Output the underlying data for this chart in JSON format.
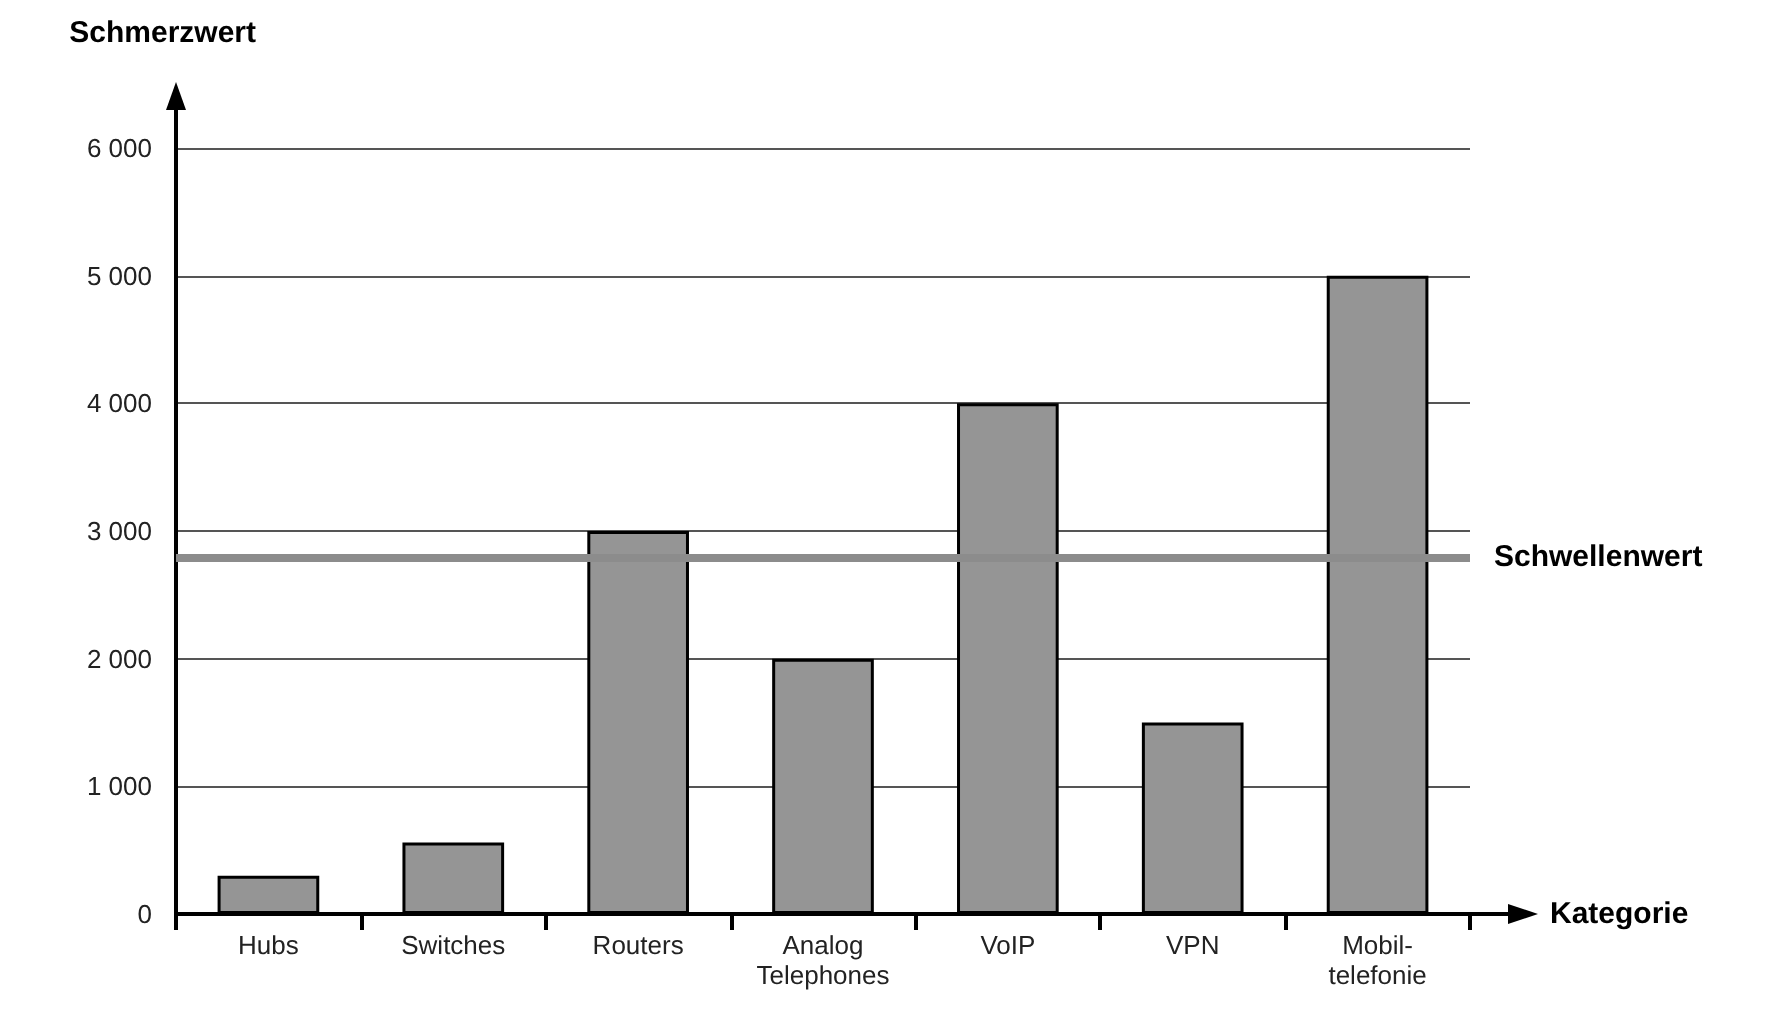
{
  "chart_data": {
    "type": "bar",
    "xlabel": "Kategorie",
    "ylabel": "Schmerzwert",
    "categories": [
      "Hubs",
      "Switches",
      "Routers",
      "Analog\nTelephones",
      "VoIP",
      "VPN",
      "Mobil-\ntelefonie"
    ],
    "values": [
      300,
      560,
      3000,
      2000,
      4000,
      1500,
      5000
    ],
    "color": "#959595",
    "ylim": [
      0,
      6000
    ],
    "yticks": [
      {
        "value": 0,
        "label": "0"
      },
      {
        "value": 1000,
        "label": "1 000"
      },
      {
        "value": 2000,
        "label": "2 000"
      },
      {
        "value": 3000,
        "label": "3 000"
      },
      {
        "value": 4000,
        "label": "4 000"
      },
      {
        "value": 5000,
        "label": "5 000"
      },
      {
        "value": 6000,
        "label": "6 000"
      }
    ],
    "grid": "y",
    "ref_lines": [
      {
        "axis": "y",
        "value": 2800,
        "label": "Schwellenwert",
        "color": "#8c8c8c"
      }
    ]
  }
}
